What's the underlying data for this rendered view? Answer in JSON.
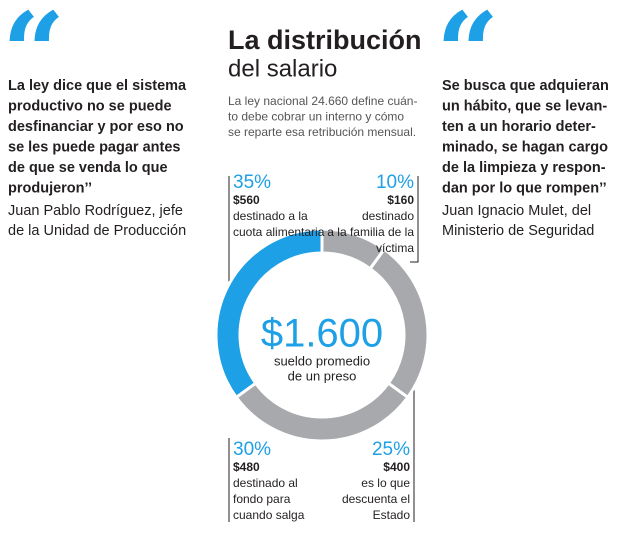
{
  "left_quote": {
    "mark": "“",
    "text_lines": [
      "La ley dice que el sistema",
      "productivo no se puede",
      "desfinanciar y por eso no",
      "se les puede pagar antes",
      "de que se venda lo que",
      "produjeron’’"
    ],
    "author_lines": [
      "Juan Pablo Rodríguez, jefe",
      "de la Unidad de Producción"
    ]
  },
  "right_quote": {
    "mark": "“",
    "text_lines": [
      "Se busca que adquieran",
      "un hábito, que se levan-",
      "ten a un horario deter-",
      "minado, se hagan cargo",
      "de la limpieza y respon-",
      "dan por lo que rompen’’"
    ],
    "author_lines": [
      "Juan Ignacio Mulet, del",
      "Ministerio de Seguridad"
    ]
  },
  "chart_data": {
    "type": "donut",
    "title": "La distribución",
    "subtitle": "del salario",
    "description": [
      "La ley nacional 24.660 define cuán-",
      "to debe cobrar un interno y cómo",
      "se reparte esa retribución mensual."
    ],
    "center_value": "$1.600",
    "center_label": [
      "sueldo promedio",
      "de un preso"
    ],
    "values": [
      10,
      25,
      30,
      35
    ],
    "value_labels": [
      "10%",
      "25%",
      "30%",
      "35%"
    ],
    "colors": [
      "#a7a9ac",
      "#a7a9ac",
      "#a7a9ac",
      "#1ea0e6"
    ],
    "amounts": [
      "$160",
      "$400",
      "$480",
      "$560"
    ],
    "descriptions": [
      [
        "destinado",
        "a la familia de la",
        "víctima"
      ],
      [
        "es lo que",
        "descuenta el",
        "Estado"
      ],
      [
        "destinado al",
        "fondo para",
        "cuando salga"
      ],
      [
        "destinado a la",
        "cuota alimentaria"
      ]
    ]
  }
}
